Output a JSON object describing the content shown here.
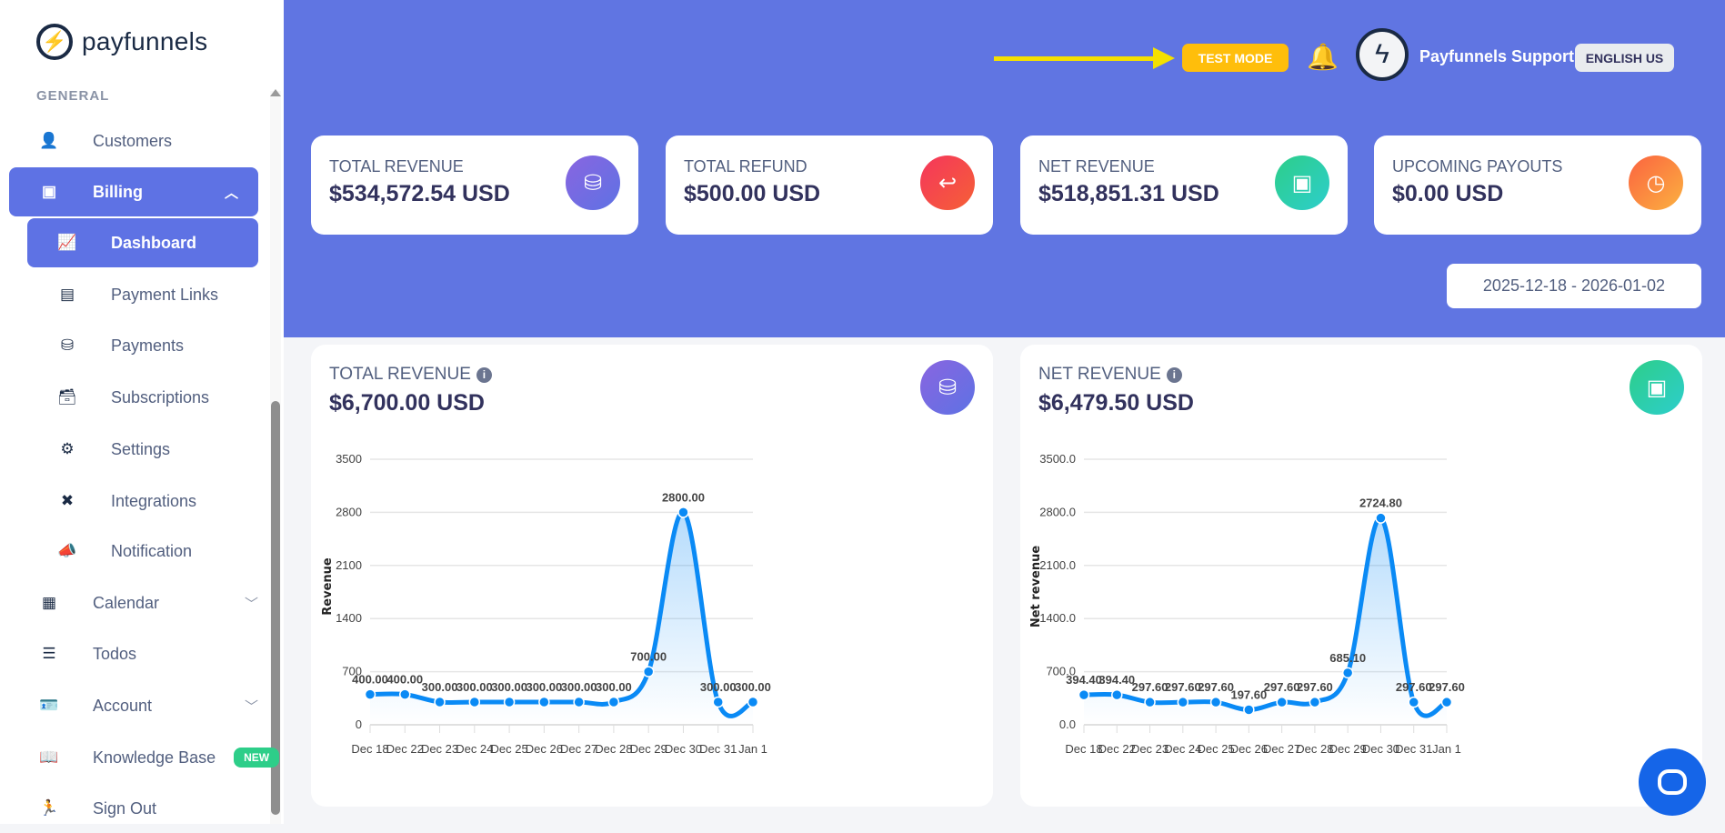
{
  "brand": "payfunnels",
  "sidebar": {
    "section": "GENERAL",
    "items": [
      {
        "label": "Customers",
        "icon": "user-icon"
      },
      {
        "label": "Billing",
        "icon": "money-icon"
      },
      {
        "label": "Dashboard",
        "icon": "chart-line-icon"
      },
      {
        "label": "Payment Links",
        "icon": "link-card-icon"
      },
      {
        "label": "Payments",
        "icon": "payments-icon"
      },
      {
        "label": "Subscriptions",
        "icon": "archive-icon"
      },
      {
        "label": "Settings",
        "icon": "gear-icon"
      },
      {
        "label": "Integrations",
        "icon": "tools-icon"
      },
      {
        "label": "Notification",
        "icon": "megaphone-icon"
      },
      {
        "label": "Calendar",
        "icon": "calendar-icon"
      },
      {
        "label": "Todos",
        "icon": "list-icon"
      },
      {
        "label": "Account",
        "icon": "id-card-icon"
      },
      {
        "label": "Knowledge Base",
        "icon": "book-icon",
        "badge": "NEW"
      },
      {
        "label": "Sign Out",
        "icon": "running-icon"
      }
    ]
  },
  "header": {
    "test_mode": "TEST MODE",
    "user": "Payfunnels Support",
    "language": "ENGLISH US"
  },
  "stats": [
    {
      "label": "TOTAL REVENUE",
      "value": "$534,572.54 USD"
    },
    {
      "label": "TOTAL REFUND",
      "value": "$500.00 USD"
    },
    {
      "label": "NET REVENUE",
      "value": "$518,851.31 USD"
    },
    {
      "label": "UPCOMING PAYOUTS",
      "value": "$0.00 USD"
    }
  ],
  "date_range": "2025-12-18 - 2026-01-02",
  "cards": [
    {
      "label": "TOTAL REVENUE",
      "value": "$6,700.00 USD"
    },
    {
      "label": "NET REVENUE",
      "value": "$6,479.50 USD"
    }
  ],
  "colors": {
    "accent": "#5e72e4",
    "line": "#0a8af5"
  },
  "chart_data": [
    {
      "type": "line",
      "title": "TOTAL REVENUE",
      "ylabel": "Revenue",
      "ylim": [
        0,
        3500
      ],
      "yticks": [
        "0",
        "700",
        "1400",
        "2100",
        "2800",
        "3500"
      ],
      "categories": [
        "Dec 18",
        "Dec 22",
        "Dec 23",
        "Dec 24",
        "Dec 25",
        "Dec 26",
        "Dec 27",
        "Dec 28",
        "Dec 29",
        "Dec 30",
        "Dec 31",
        "Jan 1"
      ],
      "values": [
        400,
        400,
        300,
        300,
        300,
        300,
        300,
        300,
        700,
        2800,
        300,
        300
      ],
      "labels": [
        "400.00",
        "400.00",
        "300.00",
        "300.00",
        "300.00",
        "300.00",
        "300.00",
        "300.00",
        "700.00",
        "2800.00",
        "300.00",
        "300.00"
      ]
    },
    {
      "type": "line",
      "title": "NET REVENUE",
      "ylabel": "Net revenue",
      "ylim": [
        0,
        3500
      ],
      "yticks": [
        "0.0",
        "700.0",
        "1400.0",
        "2100.0",
        "2800.0",
        "3500.0"
      ],
      "categories": [
        "Dec 18",
        "Dec 22",
        "Dec 23",
        "Dec 24",
        "Dec 25",
        "Dec 26",
        "Dec 27",
        "Dec 28",
        "Dec 29",
        "Dec 30",
        "Dec 31",
        "Jan 1"
      ],
      "values": [
        394.4,
        394.4,
        297.6,
        297.6,
        297.6,
        197.6,
        297.6,
        297.6,
        685.1,
        2724.8,
        297.6,
        297.6
      ],
      "labels": [
        "394.40",
        "394.40",
        "297.60",
        "297.60",
        "297.60",
        "197.60",
        "297.60",
        "297.60",
        "685.10",
        "2724.80",
        "297.60",
        "297.60"
      ]
    }
  ]
}
